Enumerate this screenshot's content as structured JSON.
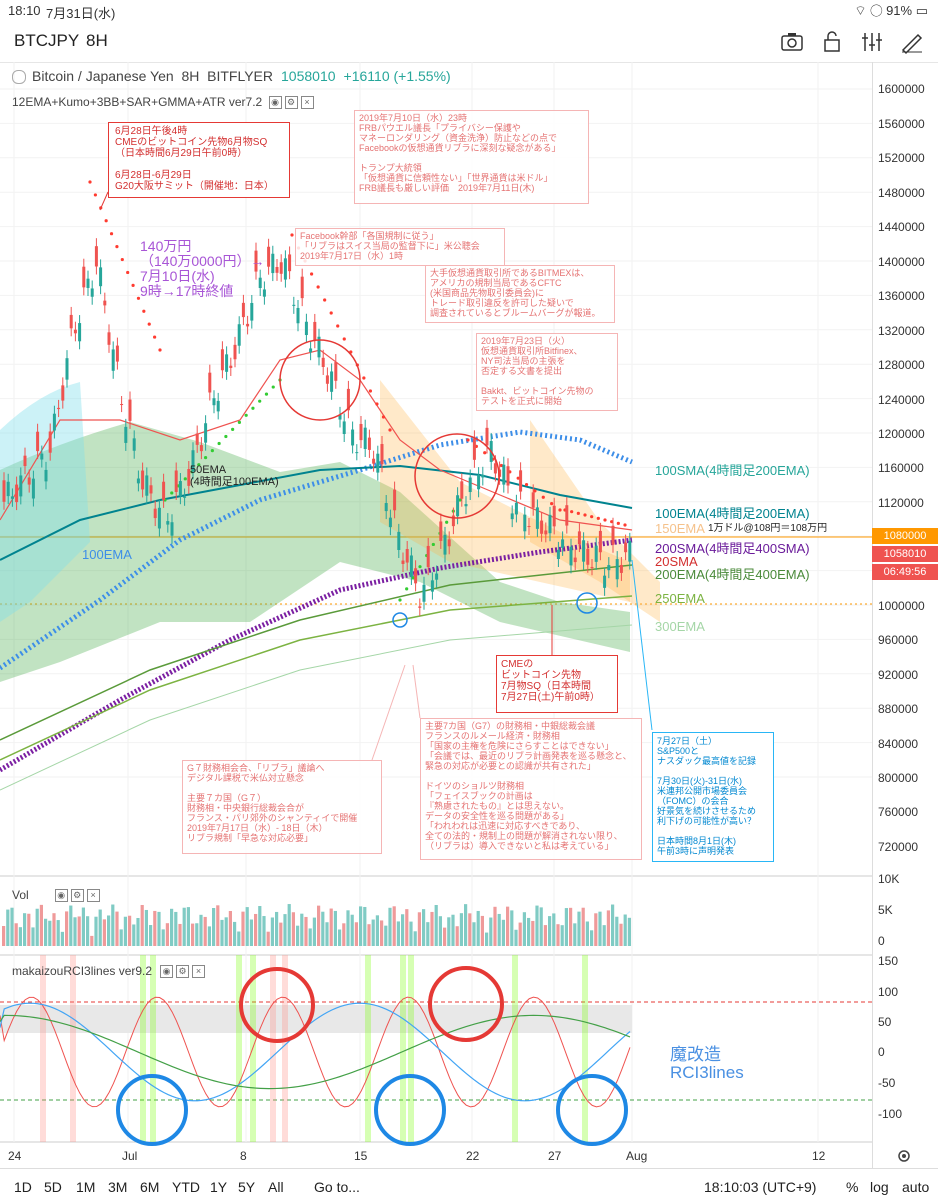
{
  "status": {
    "time": "18:10",
    "date": "7月31日(水)",
    "battery": "91%"
  },
  "toolbar": {
    "symbol": "BTCJPY",
    "timeframe": "8H"
  },
  "header": {
    "title": "Bitcoin / Japanese Yen",
    "timeframe": "8H",
    "exchange": "BITFLYER",
    "price": "1058010",
    "change": "+16110 (+1.55%)"
  },
  "indicator_main": "12EMA+Kumo+3BB+SAR+GMMA+ATR ver7.2",
  "indicator_vol": "Vol",
  "indicator_rci": "makaizouRCI3lines ver9.2",
  "y_axis": [
    "1600000",
    "1560000",
    "1520000",
    "1480000",
    "1440000",
    "1400000",
    "1360000",
    "1320000",
    "1280000",
    "1240000",
    "1200000",
    "1160000",
    "1120000",
    "1000000",
    "960000",
    "920000",
    "880000",
    "840000",
    "800000",
    "760000",
    "720000"
  ],
  "vol_axis": [
    "10K",
    "5K",
    "0"
  ],
  "rci_axis": [
    "150",
    "100",
    "50",
    "0",
    "-50",
    "-100"
  ],
  "badges": {
    "level1": "1080000",
    "price": "1058010",
    "countdown": "06:49:56"
  },
  "x_axis": [
    "24",
    "Jul",
    "8",
    "15",
    "22",
    "27",
    "Aug",
    "12"
  ],
  "ma_labels": {
    "sma100": "100SMA(4時間足200EMA)",
    "ema100": "100EMA(4時間足200EMA)",
    "ema150": "150EMA",
    "sma200": "200SMA(4時間足400SMA)",
    "sma20": "20SMA",
    "ema200": "200EMA(4時間足400EMA)",
    "ema250": "250EMA",
    "ema300": "300EMA",
    "ema100_left": "100EMA",
    "ema50": "50EMA\n(4時間足100EMA)",
    "usd_note": "1万ドル@108円＝108万円"
  },
  "notes": {
    "n1": "6月28日午後4時\nCMEのビットコイン先物6月物SQ\n（日本時間6月29日午前0時）\n\n6月28日-6月29日\nG20大阪サミット（開催地：日本）",
    "n2": "140万円\n（140万0000円）→\n7月10日(水)\n9時→17時終値",
    "n3": "2019年7月10日（水）23時\nFRBパウエル議長「プライバシー保護や\nマネーロンダリング（資金洗浄）防止などの点で\nFacebookの仮想通貨リブラに深刻な疑念がある」\n\nトランプ大統領\n「仮想通貨に信頼性ない」「世界通貨は米ドル」\nFRB議長も厳しい評価　2019年7月11日(木)",
    "n4": "Facebook幹部「各国規制に従う」\n「リブラはスイス当局の監督下に」米公聴会\n2019年7月17日（水）1時",
    "n5": "大手仮想通貨取引所であるBITMEXは、\nアメリカの規制当局であるCFTC\n(米国商品先物取引委員会)に\nトレード取引違反を許可した疑いで\n調査されているとブルームバーグが報道。",
    "n6": "2019年7月23日（火）\n仮想通貨取引所Bitfinex、\nNY司法当局の主張を\n否定する文書を提出\n\nBakkt、ビットコイン先物の\nテストを正式に開始",
    "n7": "CMEの\nビットコイン先物\n7月物SQ（日本時間\n7月27日(土)午前0時）",
    "n8": "G７財務相会合、「リブラ」議論へ\nデジタル課税で米仏対立懸念\n\n主要７カ国（G７）\n財務相・中央銀行総裁会合が\nフランス・パリ郊外のシャンティイで開催\n2019年7月17日（水）- 18日（木）\nリブラ規制「早急な対応必要」",
    "n9": "主要7カ国（G7）の財務相・中銀総裁会議\nフランスのルメール経済・財務相\n「国家の主権を危険にさらすことはできない」\n「会議では、最近のリブラ計画発表を巡る懸念と、\n緊急の対応が必要との認識が共有された」\n\nドイツのショルツ財務相\n「フェイスブックの計画は\n『熟慮されたもの』とは思えない。\nデータの安全性を巡る問題がある」\n「われわれは迅速に対応すべきであり、\n全ての法的・規制上の問題が解消されない限り、\n（リブラは）導入できないと私は考えている」",
    "n10": "7月27日（土）\nS&P500と\nナスダック最高値を記録\n\n7月30日(火)-31日(水)\n米連邦公開市場委員会\n（FOMC）の会合\n好景気を続けさせるため\n利下げの可能性が高い？\n\n日本時間8月1日(木)\n午前3時に声明発表"
  },
  "rci_label": "魔改造\nRCI3lines",
  "ranges": [
    "1D",
    "5D",
    "1M",
    "3M",
    "6M",
    "YTD",
    "1Y",
    "5Y",
    "All"
  ],
  "goto": "Go to...",
  "clock": "18:10:03 (UTC+9)",
  "scale_opts": [
    "%",
    "log",
    "auto"
  ],
  "colors": {
    "up": "#26a69a",
    "down": "#ef5350",
    "sar_red": "#ff3b30",
    "sar_green": "#33cc33",
    "sma100": "#3d8ee8",
    "sma200": "#7b1fa2",
    "ema100": "#00838f",
    "ema200": "#5a9a3a"
  },
  "chart_data": {
    "type": "candlestick",
    "ylim": [
      680000,
      1620000
    ],
    "close_approx": [
      1120000,
      1150000,
      1180000,
      1320000,
      1400000,
      1250000,
      1140000,
      1100000,
      1150000,
      1240000,
      1300000,
      1380000,
      1400000,
      1330000,
      1270000,
      1200000,
      1180000,
      1080000,
      1010000,
      1070000,
      1140000,
      1180000,
      1120000,
      1100000,
      1080000,
      1060000,
      1050000,
      1058010
    ]
  }
}
